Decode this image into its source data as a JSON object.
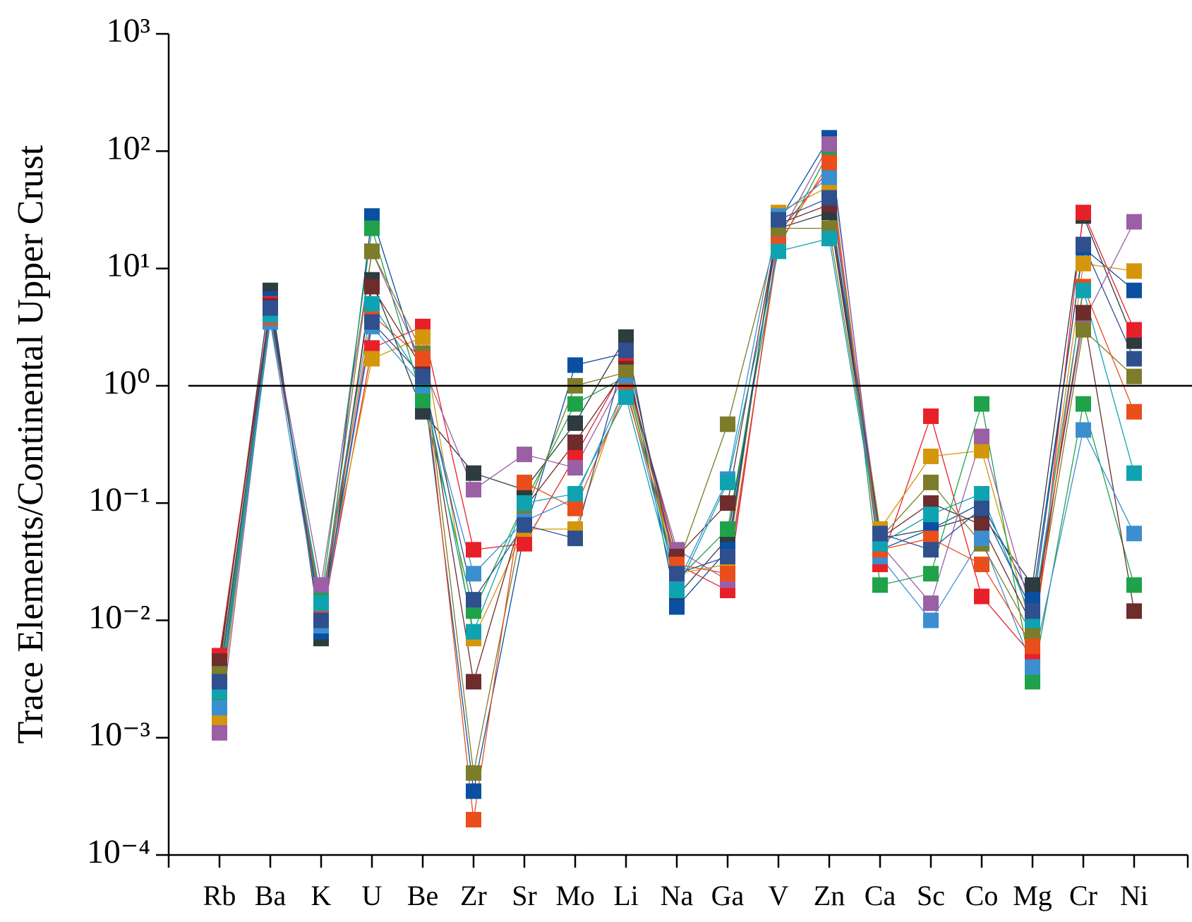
{
  "chart_data": {
    "type": "line",
    "y_label": "Trace Elements/Continental Upper Crust",
    "y_scale": "log",
    "ylim": [
      0.0001,
      1000
    ],
    "yticks": [
      {
        "value": 0.0001,
        "label": "10⁻⁴"
      },
      {
        "value": 0.001,
        "label": "10⁻³"
      },
      {
        "value": 0.01,
        "label": "10⁻²"
      },
      {
        "value": 0.1,
        "label": "10⁻¹"
      },
      {
        "value": 1,
        "label": "10⁰"
      },
      {
        "value": 10,
        "label": "10¹"
      },
      {
        "value": 100,
        "label": "10²"
      },
      {
        "value": 1000,
        "label": "10³"
      }
    ],
    "reference_line": 1,
    "markers": "square",
    "categories": [
      "Rb",
      "Ba",
      "K",
      "U",
      "Be",
      "Zr",
      "Sr",
      "Mo",
      "Li",
      "Na",
      "Ga",
      "V",
      "Zn",
      "Ca",
      "Sc",
      "Co",
      "Mg",
      "Cr",
      "Ni"
    ],
    "series": [
      {
        "color": "#2e3b3f",
        "values": [
          0.004,
          6.5,
          0.007,
          8,
          0.6,
          0.18,
          0.13,
          0.48,
          2.6,
          0.016,
          0.05,
          22,
          30,
          0.05,
          0.06,
          0.08,
          0.02,
          28,
          2.4
        ]
      },
      {
        "color": "#0a4fa0",
        "values": [
          0.002,
          5.5,
          0.008,
          28,
          1.2,
          0.00035,
          0.055,
          1.5,
          1.9,
          0.013,
          0.04,
          25,
          130,
          0.04,
          0.06,
          0.1,
          0.015,
          15,
          6.5
        ]
      },
      {
        "color": "#e8202a",
        "values": [
          0.005,
          5,
          0.009,
          2.1,
          3.2,
          0.04,
          0.045,
          0.25,
          1.5,
          0.03,
          0.018,
          20,
          70,
          0.03,
          0.55,
          0.016,
          0.005,
          30,
          3
        ]
      },
      {
        "color": "#d4960a",
        "values": [
          0.0014,
          4.5,
          0.012,
          1.7,
          2.6,
          0.007,
          0.06,
          0.06,
          1.1,
          0.025,
          0.03,
          30,
          50,
          0.06,
          0.25,
          0.28,
          0.008,
          11,
          9.5
        ]
      },
      {
        "color": "#1fa24a",
        "values": [
          0.002,
          4,
          0.015,
          22,
          0.75,
          0.012,
          0.1,
          0.7,
          1.2,
          0.022,
          0.06,
          15,
          100,
          0.02,
          0.025,
          0.7,
          0.003,
          0.7,
          0.02
        ]
      },
      {
        "color": "#9b5fa6",
        "values": [
          0.0011,
          4.2,
          0.02,
          14,
          1.5,
          0.13,
          0.26,
          0.2,
          1.3,
          0.04,
          0.022,
          18,
          115,
          0.045,
          0.014,
          0.37,
          0.011,
          3.5,
          25
        ]
      },
      {
        "color": "#6e2c2c",
        "values": [
          0.0045,
          4.8,
          0.01,
          7,
          1.4,
          0.003,
          0.09,
          0.33,
          1.4,
          0.035,
          0.1,
          24,
          35,
          0.05,
          0.1,
          0.065,
          0.009,
          4.2,
          0.012
        ]
      },
      {
        "color": "#7c7c2a",
        "values": [
          0.0035,
          4.3,
          0.011,
          14,
          1.9,
          0.0005,
          0.08,
          1.0,
          1.3,
          0.028,
          0.47,
          22,
          22,
          0.05,
          0.15,
          0.045,
          0.0075,
          3,
          1.2
        ]
      },
      {
        "color": "#3b8fd0",
        "values": [
          0.0018,
          3.5,
          0.009,
          3.2,
          1.0,
          0.025,
          0.07,
          0.11,
          1.0,
          0.02,
          0.16,
          28,
          60,
          0.035,
          0.01,
          0.05,
          0.004,
          0.42,
          0.055
        ]
      },
      {
        "color": "#e94e1b",
        "values": [
          0.003,
          3.8,
          0.013,
          4,
          1.7,
          0.0002,
          0.15,
          0.09,
          0.9,
          0.03,
          0.025,
          16,
          80,
          0.04,
          0.05,
          0.03,
          0.006,
          7,
          0.6
        ]
      },
      {
        "color": "#0fa3b1",
        "values": [
          0.0025,
          4,
          0.014,
          5,
          1.1,
          0.008,
          0.1,
          0.12,
          0.8,
          0.018,
          0.15,
          14,
          18,
          0.045,
          0.08,
          0.12,
          0.01,
          6.5,
          0.18
        ]
      },
      {
        "color": "#2f4f8f",
        "values": [
          0.003,
          4.6,
          0.01,
          3.5,
          1.2,
          0.015,
          0.065,
          0.05,
          2,
          0.025,
          0.035,
          26,
          40,
          0.055,
          0.04,
          0.09,
          0.012,
          16,
          1.7
        ]
      }
    ]
  }
}
